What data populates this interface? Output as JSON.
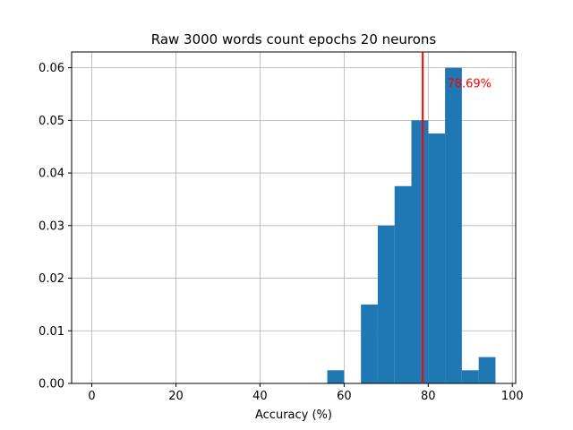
{
  "chart_data": {
    "type": "bar",
    "title": "Raw 3000 words count epochs 20 neurons",
    "xlabel": "Accuracy (%)",
    "ylabel": "",
    "xlim": [
      -4.8,
      100.8
    ],
    "ylim": [
      0,
      0.063
    ],
    "xticks": [
      0,
      20,
      40,
      60,
      80,
      100
    ],
    "yticks": [
      0.0,
      0.01,
      0.02,
      0.03,
      0.04,
      0.05,
      0.06
    ],
    "ytick_labels": [
      "0.00",
      "0.01",
      "0.02",
      "0.03",
      "0.04",
      "0.05",
      "0.06"
    ],
    "grid": true,
    "bin_edges": [
      56,
      60,
      64,
      68,
      72,
      76,
      80,
      84,
      88,
      92,
      96
    ],
    "values": [
      0.0025,
      0.0,
      0.015,
      0.03,
      0.0375,
      0.05,
      0.0475,
      0.06,
      0.0025,
      0.005
    ],
    "bar_color": "#1f77b4",
    "mean_line": {
      "x": 78.69,
      "color": "#ff0000",
      "label": "78.69%"
    }
  }
}
